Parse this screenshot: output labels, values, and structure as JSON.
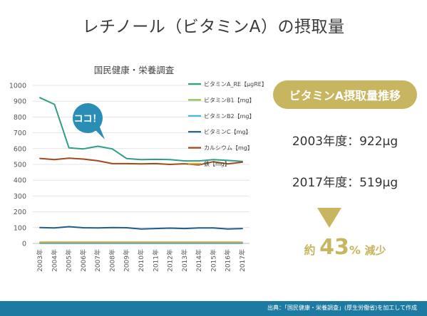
{
  "slide": {
    "title": "レチノール（ビタミンA）の摂取量"
  },
  "callout": {
    "text": "ココ！",
    "color": "#2a8db5"
  },
  "summary": {
    "badge": "ビタミンA摂取量推移",
    "line_2003": "2003年度：922μg",
    "line_2017": "2017年度：519μg",
    "decrease_prefix": "約",
    "decrease_value": "43",
    "decrease_unit": "%",
    "decrease_suffix": "減少",
    "accent_color": "#c7b55f"
  },
  "footer": {
    "source": "出典：「国民健康・栄養調査」(厚生労働省)を加工して作成",
    "color": "#1d7aa0"
  },
  "chart_data": {
    "type": "line",
    "title": "国民健康・栄養調査",
    "xlabel": "",
    "ylabel": "",
    "ylim": [
      0,
      1000
    ],
    "yticks": [
      0,
      100,
      200,
      300,
      400,
      500,
      600,
      700,
      800,
      900,
      1000
    ],
    "grid": true,
    "legend_position": "right",
    "categories": [
      "2003年",
      "2004年",
      "2005年",
      "2006年",
      "2007年",
      "2008年",
      "2009年",
      "2010年",
      "2011年",
      "2012年",
      "2013年",
      "2014年",
      "2015年",
      "2016年",
      "2017年"
    ],
    "series": [
      {
        "name": "ビタミンA_RE【μgRE】",
        "color": "#2e9e84",
        "values": [
          922,
          880,
          605,
          598,
          615,
          598,
          537,
          530,
          532,
          530,
          522,
          522,
          530,
          525,
          519
        ]
      },
      {
        "name": "ビタミンB1【mg】",
        "color": "#8cc051",
        "values": [
          1.0,
          1.0,
          1.0,
          1.0,
          1.0,
          1.0,
          1.0,
          1.0,
          1.0,
          1.0,
          1.0,
          1.0,
          1.0,
          1.0,
          1.0
        ]
      },
      {
        "name": "ビタミンB2【mg】",
        "color": "#3bb2e0",
        "values": [
          1.3,
          1.3,
          1.3,
          1.3,
          1.3,
          1.3,
          1.3,
          1.3,
          1.2,
          1.2,
          1.2,
          1.2,
          1.2,
          1.2,
          1.2
        ]
      },
      {
        "name": "ビタミンC【mg】",
        "color": "#1f5e8c",
        "values": [
          100,
          98,
          106,
          99,
          98,
          100,
          99,
          91,
          94,
          97,
          94,
          98,
          98,
          91,
          94
        ]
      },
      {
        "name": "カルシウム【mg】",
        "color": "#a04a1e",
        "values": [
          538,
          530,
          539,
          534,
          523,
          505,
          505,
          503,
          505,
          500,
          504,
          497,
          517,
          503,
          514
        ]
      },
      {
        "name": "鉄【mg】",
        "color": "#e2a23b",
        "values": [
          8.0,
          7.9,
          8.0,
          8.0,
          7.9,
          7.8,
          7.8,
          7.6,
          7.6,
          7.6,
          7.6,
          7.6,
          7.6,
          7.5,
          7.5
        ]
      }
    ]
  }
}
